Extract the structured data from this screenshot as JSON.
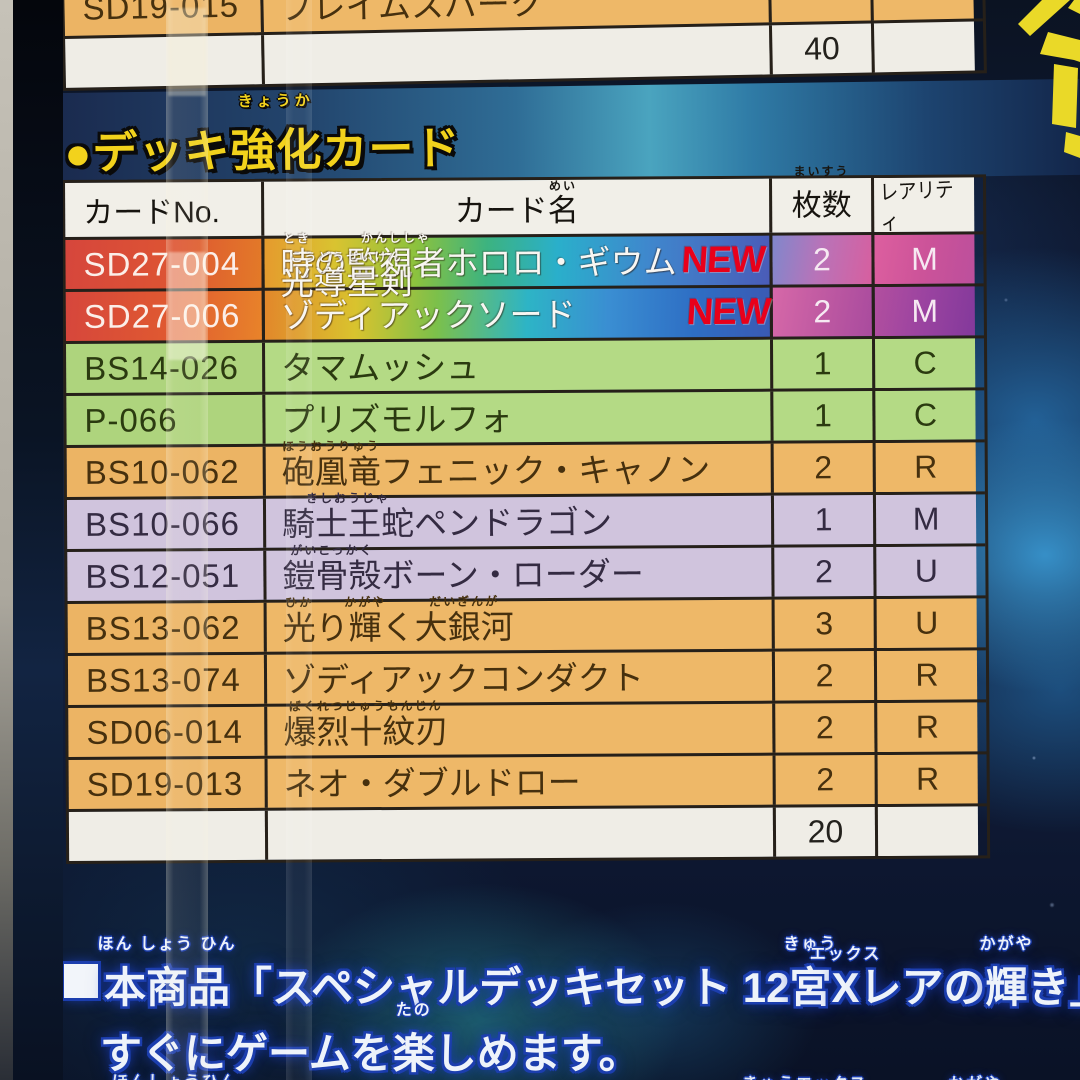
{
  "top_table": {
    "partial_row": {
      "no": "SD19-015",
      "name": "フレイムスパーク"
    },
    "total_qty": "40"
  },
  "section": {
    "heading_ruby": [
      [
        "●デッキ"
      ],
      [
        "強化",
        "きょうか"
      ],
      [
        "カード"
      ]
    ]
  },
  "deck_table": {
    "headers": {
      "no": "カードNo.",
      "name_ruby": [
        [
          "カード"
        ],
        [
          "名",
          "めい"
        ]
      ],
      "qty_ruby": [
        [
          "枚数",
          "まいすう"
        ]
      ],
      "rarity": "レアリティ"
    },
    "rows": [
      {
        "no": "SD27-004",
        "name_ruby": [
          [
            "時",
            "とき"
          ],
          [
            "の"
          ],
          [
            "監視者",
            "かんししゃ"
          ],
          [
            "ホロロ・ギウム"
          ]
        ],
        "new_label": "NEW",
        "qty": "2",
        "rarity": "M",
        "style": "x-rare-rainbow-1"
      },
      {
        "no": "SD27-006",
        "name_ruby": [
          [
            "光導星剣",
            "こうどうせいけん"
          ],
          [
            "ゾディアックソード"
          ]
        ],
        "new_label": "NEW",
        "qty": "2",
        "rarity": "M",
        "style": "x-rare-rainbow-2"
      },
      {
        "no": "BS14-026",
        "name_ruby": [
          [
            "タマムッシュ"
          ]
        ],
        "qty": "1",
        "rarity": "C",
        "style": "green"
      },
      {
        "no": "P-066",
        "name_ruby": [
          [
            "プリズモルフォ"
          ]
        ],
        "qty": "1",
        "rarity": "C",
        "style": "green"
      },
      {
        "no": "BS10-062",
        "name_ruby": [
          [
            "砲凰竜",
            "ほうおうりゅう"
          ],
          [
            "フェニック・キャノン"
          ]
        ],
        "qty": "2",
        "rarity": "R",
        "style": "orange"
      },
      {
        "no": "BS10-066",
        "name_ruby": [
          [
            "騎士王蛇",
            "きしおうじゃ"
          ],
          [
            "ペンドラゴン"
          ]
        ],
        "qty": "1",
        "rarity": "M",
        "style": "purple"
      },
      {
        "no": "BS12-051",
        "name_ruby": [
          [
            "鎧骨殻",
            "がいこっかく"
          ],
          [
            "ボーン・ローダー"
          ]
        ],
        "qty": "2",
        "rarity": "U",
        "style": "purple"
      },
      {
        "no": "BS13-062",
        "name_ruby": [
          [
            "光",
            "ひか"
          ],
          [
            "り"
          ],
          [
            "輝",
            "かがや"
          ],
          [
            "く"
          ],
          [
            "大銀河",
            "だいぎんが"
          ]
        ],
        "qty": "3",
        "rarity": "U",
        "style": "orange"
      },
      {
        "no": "BS13-074",
        "name_ruby": [
          [
            "ゾディアックコンダクト"
          ]
        ],
        "qty": "2",
        "rarity": "R",
        "style": "orange"
      },
      {
        "no": "SD06-014",
        "name_ruby": [
          [
            "爆烈十紋刃",
            "ばくれつじゅうもんじん"
          ]
        ],
        "qty": "2",
        "rarity": "R",
        "style": "orange"
      },
      {
        "no": "SD19-013",
        "name_ruby": [
          [
            "ネオ・ダブルドロー"
          ]
        ],
        "qty": "2",
        "rarity": "R",
        "style": "orange"
      }
    ],
    "total_qty": "20"
  },
  "footer": {
    "line1_ruby": [
      [
        "本商品",
        "ほん しょう ひん"
      ],
      [
        "「スペシャルデッキセット 12"
      ],
      [
        "宮",
        "きゅう"
      ],
      [
        "X",
        "エックス"
      ],
      [
        "レアの"
      ],
      [
        "輝",
        "かがや"
      ],
      [
        "き」に"
      ]
    ],
    "line2_ruby": [
      [
        "すぐにゲームを"
      ],
      [
        "楽",
        "たの"
      ],
      [
        "しめます。"
      ]
    ],
    "partial_next_line_furigana": [
      "ほんしょうひん",
      "きゅうエックス",
      "かがや"
    ]
  },
  "colors": {
    "background_navy": "#101c38",
    "banner_blue": "#2f6d96",
    "heading_yellow": "#f2d21c",
    "table_border": "#262019",
    "cell_white": "#efede6",
    "row_orange": "#eeb868",
    "row_green": "#b4da85",
    "row_purple": "#d0c4dd",
    "xrare_red": "#d6463c",
    "new_red": "#e8001a",
    "footer_text": "#eef3fa",
    "footer_outline": "#1c3eae",
    "glyph_yellow": "#ead928"
  }
}
